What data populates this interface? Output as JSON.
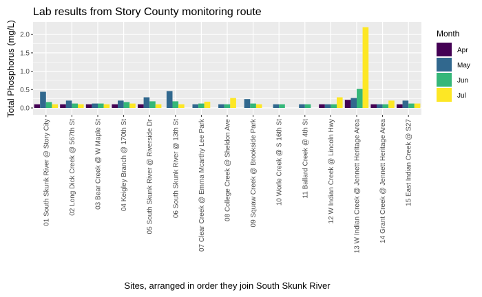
{
  "chart_data": {
    "type": "bar",
    "title": "Lab results from Story County monitoring route",
    "xlabel": "Sites, arranged in order they join South Skunk River",
    "ylabel": "Total Phosphorus (mg/L)",
    "ylim": [
      0,
      2.25
    ],
    "yticks": [
      "0.0",
      "0.5",
      "1.0",
      "1.5",
      "2.0"
    ],
    "grid": true,
    "legend": {
      "title": "Month",
      "placement": "right"
    },
    "categories": [
      "01 South Skunk River @ Story City",
      "02 Long Dick Creek @  567th St",
      "03 Bear Creek @ W Maple St",
      "04 Keigley Branch @ 170th St",
      "05 South Skunk River @ Riverside Dr",
      "06 South Skunk River @ 13th St",
      "07 Clear Creek @ Emma Mcarthy Lee Park",
      "08 College Creek @ Sheldon Ave",
      "09 Squaw Creek @ Brookside Park",
      "10 Worle Creek @ S 16th St",
      "11 Ballard Creek @ 4th St",
      "12 W Indian Creek @ Lincoln Hwy",
      "13 W Indian Creek @ Jennett Heritage Area",
      "14 Grant Creek @ Jennett Heritage Area",
      "15 East Indian Creek @ S27"
    ],
    "series": [
      {
        "name": "Apr",
        "color": "#440154",
        "values": [
          0.1,
          0.1,
          0.1,
          0.1,
          0.1,
          null,
          null,
          null,
          null,
          null,
          null,
          0.1,
          0.22,
          0.1,
          0.1
        ]
      },
      {
        "name": "May",
        "color": "#31688e",
        "values": [
          0.44,
          0.2,
          0.12,
          0.2,
          0.29,
          0.46,
          0.1,
          0.1,
          0.24,
          0.1,
          0.1,
          0.1,
          0.27,
          0.1,
          0.2
        ]
      },
      {
        "name": "Jun",
        "color": "#35b779",
        "values": [
          0.16,
          0.12,
          0.12,
          0.16,
          0.18,
          0.18,
          0.12,
          0.1,
          0.12,
          0.1,
          0.1,
          0.1,
          0.52,
          0.1,
          0.12
        ]
      },
      {
        "name": "Jul",
        "color": "#fde725",
        "values": [
          0.1,
          0.1,
          0.1,
          0.12,
          0.1,
          0.1,
          0.17,
          0.27,
          0.1,
          null,
          null,
          0.29,
          2.2,
          0.2,
          0.12
        ]
      }
    ]
  }
}
